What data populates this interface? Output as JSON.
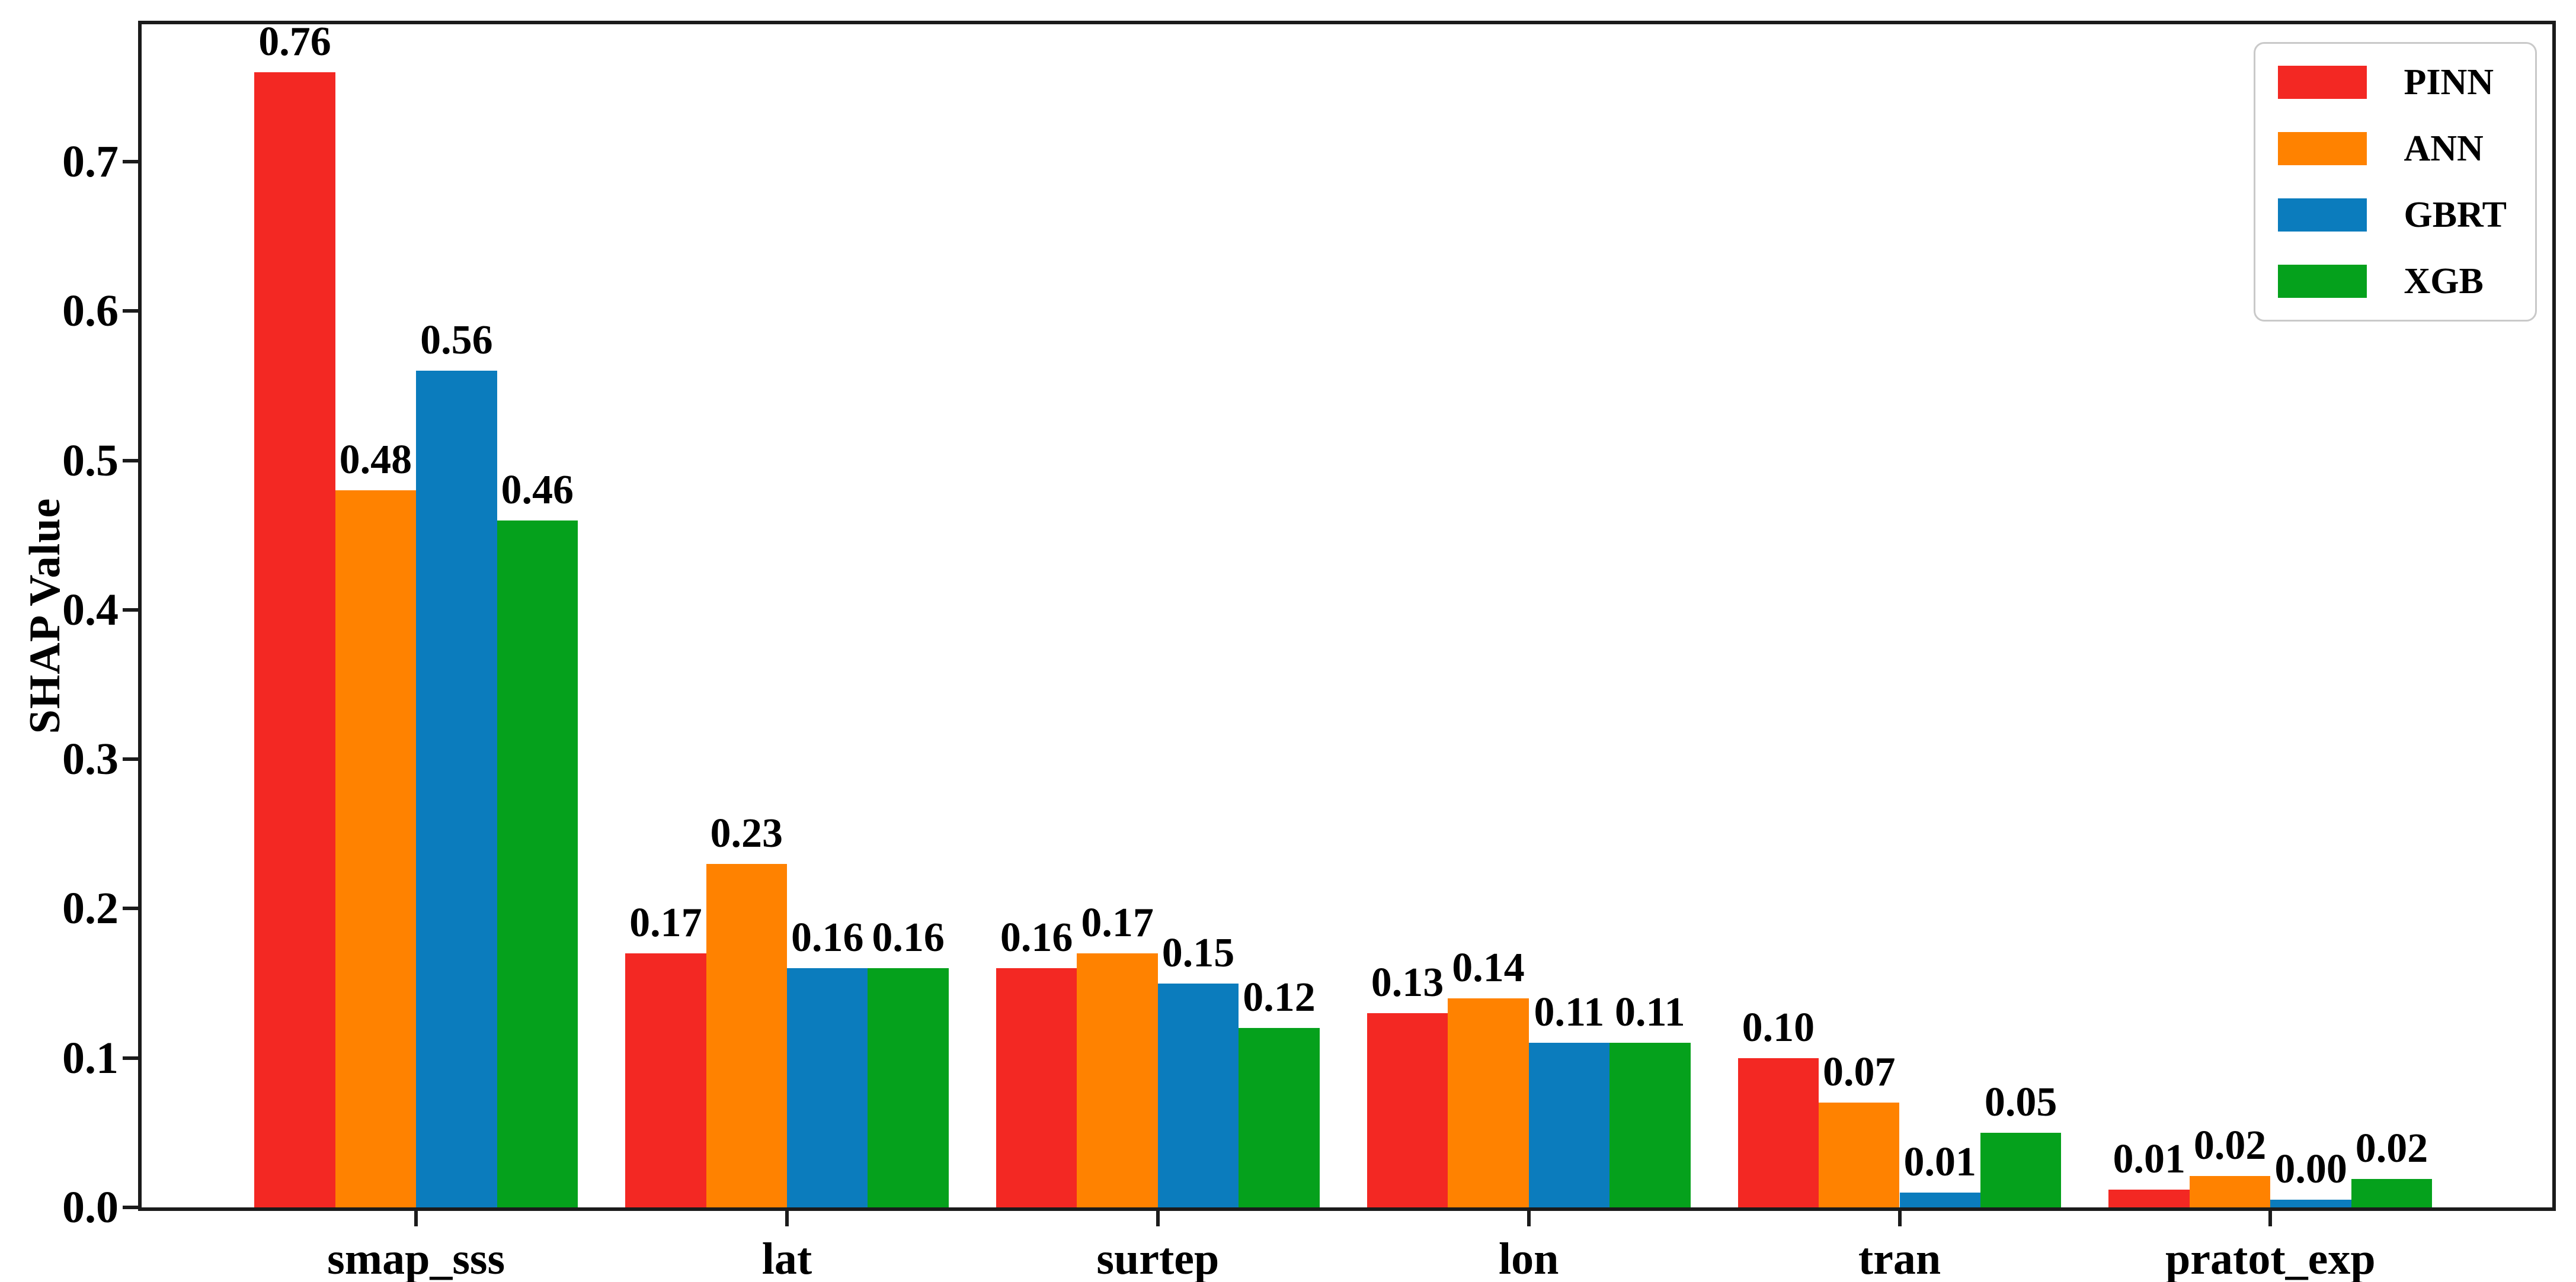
{
  "chart_data": {
    "type": "bar",
    "title": "",
    "xlabel": "",
    "ylabel": "SHAP Value",
    "categories": [
      "smap_sss",
      "lat",
      "surtep",
      "lon",
      "tran",
      "pratot_exp"
    ],
    "series": [
      {
        "name": "PINN",
        "color": "#f32823",
        "values": [
          0.76,
          0.17,
          0.16,
          0.13,
          0.1,
          0.012
        ],
        "labels": [
          "0.76",
          "0.17",
          "0.16",
          "0.13",
          "0.10",
          "0.01"
        ]
      },
      {
        "name": "ANN",
        "color": "#ff8200",
        "values": [
          0.48,
          0.23,
          0.17,
          0.14,
          0.07,
          0.021
        ],
        "labels": [
          "0.48",
          "0.23",
          "0.17",
          "0.14",
          "0.07",
          "0.02"
        ]
      },
      {
        "name": "GBRT",
        "color": "#0b7cbd",
        "values": [
          0.56,
          0.16,
          0.15,
          0.11,
          0.01,
          0.005
        ],
        "labels": [
          "0.56",
          "0.16",
          "0.15",
          "0.11",
          "0.01",
          "0.00"
        ]
      },
      {
        "name": "XGB",
        "color": "#05a11c",
        "values": [
          0.46,
          0.16,
          0.12,
          0.11,
          0.05,
          0.019
        ],
        "labels": [
          "0.46",
          "0.16",
          "0.12",
          "0.11",
          "0.05",
          "0.02"
        ]
      }
    ],
    "y_ticks": [
      "0.0",
      "0.1",
      "0.2",
      "0.3",
      "0.4",
      "0.5",
      "0.6",
      "0.7"
    ],
    "ylim": [
      0,
      0.792
    ],
    "grid": false,
    "legend": {
      "position": "upper right",
      "entries": [
        "PINN",
        "ANN",
        "GBRT",
        "XGB"
      ]
    },
    "value_labels_shown": true
  }
}
